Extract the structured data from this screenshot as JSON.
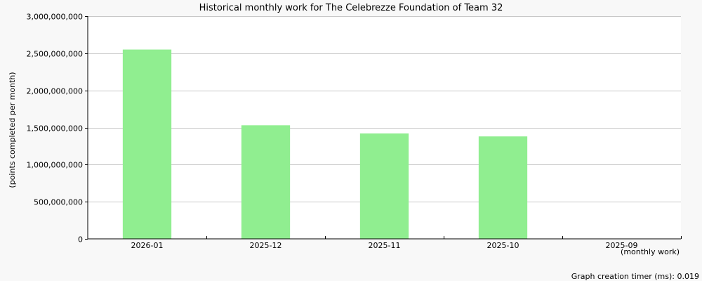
{
  "chart_data": {
    "type": "bar",
    "title": "Historical monthly work for The Celebrezze Foundation of Team 32",
    "ylabel": "(points completed per month)",
    "xlabel": "(monthly work)",
    "categories": [
      "2026-01",
      "2025-12",
      "2025-11",
      "2025-10",
      "2025-09"
    ],
    "values": [
      2550000000,
      1530000000,
      1420000000,
      1380000000,
      0
    ],
    "ylim": [
      0,
      3000000000
    ],
    "yticks": [
      0,
      500000000,
      1000000000,
      1500000000,
      2000000000,
      2500000000,
      3000000000
    ],
    "ytick_labels": [
      "0",
      "500,000,000",
      "1,000,000,000",
      "1,500,000,000",
      "2,000,000,000",
      "2,500,000,000",
      "3,000,000,000"
    ],
    "grid": true,
    "legend": "none",
    "bar_color": "#90ee90",
    "background_color": "#ffffff"
  },
  "footer": {
    "timer_text": "Graph creation timer (ms): 0.019"
  }
}
